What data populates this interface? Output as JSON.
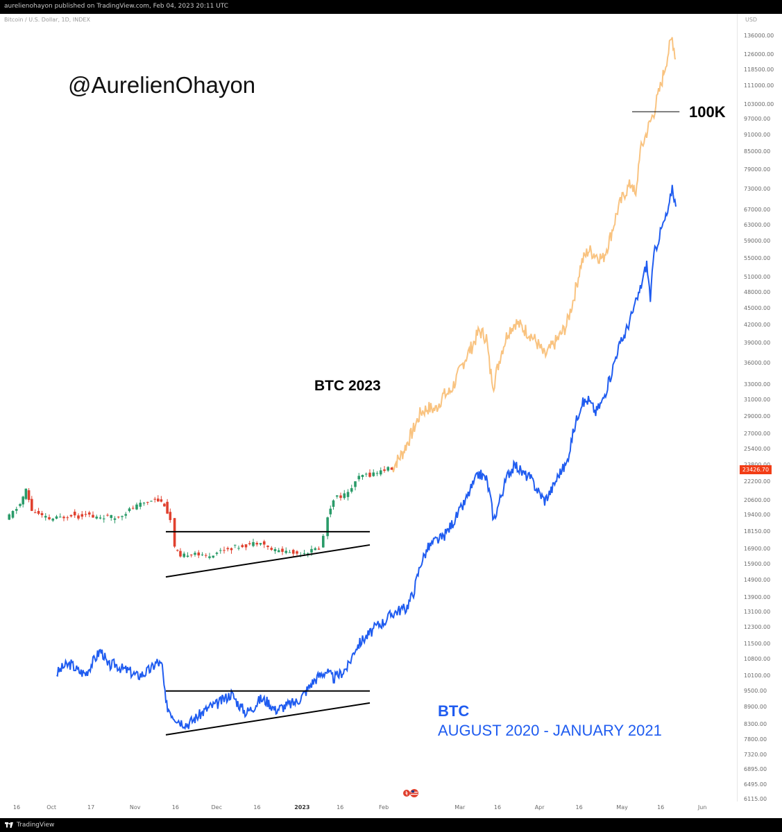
{
  "header": {
    "published": "aurelienohayon published on TradingView.com, Feb 04, 2023 20:11 UTC"
  },
  "chart_header": {
    "symbol": "Bitcoin / U.S. Dollar, 1D, INDEX",
    "currency": "USD"
  },
  "annotations": {
    "handle": "@AurelienOhayon",
    "level_100k": "100K",
    "btc_2023": "BTC 2023",
    "btc_title": "BTC",
    "btc_period": "AUGUST 2020 - JANUARY 2021"
  },
  "price_tag": "23426.70",
  "footer": {
    "brand": "TradingView"
  },
  "colors": {
    "up": "#2a9b69",
    "down": "#e0402e",
    "projection": "#f8b86a",
    "btc2020": "#1f5cf0",
    "price_tag": "#f23d16"
  },
  "icons": {
    "tv_logo": "tradingview-logo-icon",
    "flag": "us-flag-event-icon"
  },
  "chart_data": {
    "type": "line",
    "scale": "log",
    "title": "",
    "y_ticks": [
      136000,
      126000,
      118500,
      111000,
      103000,
      97000,
      91000,
      85000,
      79000,
      73000,
      67000,
      63000,
      59000,
      55000,
      51000,
      48000,
      45000,
      42000,
      39000,
      36000,
      33000,
      31000,
      29000,
      27000,
      25400,
      23800,
      22200,
      20600,
      19400,
      18150,
      16900,
      15900,
      14900,
      13900,
      13100,
      12300,
      11500,
      10800,
      10100,
      9500,
      8900,
      8300,
      7800,
      7320,
      6895,
      6495,
      6115
    ],
    "y_tick_labels": [
      "136000.00",
      "126000.00",
      "118500.00",
      "111000.00",
      "103000.00",
      "97000.00",
      "91000.00",
      "85000.00",
      "79000.00",
      "73000.00",
      "67000.00",
      "63000.00",
      "59000.00",
      "55000.00",
      "51000.00",
      "48000.00",
      "45000.00",
      "42000.00",
      "39000.00",
      "36000.00",
      "33000.00",
      "31000.00",
      "29000.00",
      "27000.00",
      "25400.00",
      "23800.00",
      "22200.00",
      "20600.00",
      "19400.00",
      "18150.00",
      "16900.00",
      "15900.00",
      "14900.00",
      "13900.00",
      "13100.00",
      "12300.00",
      "11500.00",
      "10800.00",
      "10100.00",
      "9500.00",
      "8900.00",
      "8300.00",
      "7800.00",
      "7320.00",
      "6895.00",
      "6495.00",
      "6115.00"
    ],
    "x_tick_labels": [
      {
        "label": "16",
        "x": 0.018,
        "bold": false
      },
      {
        "label": "Oct",
        "x": 0.064,
        "bold": false
      },
      {
        "label": "17",
        "x": 0.12,
        "bold": false
      },
      {
        "label": "Nov",
        "x": 0.178,
        "bold": false
      },
      {
        "label": "16",
        "x": 0.236,
        "bold": false
      },
      {
        "label": "Dec",
        "x": 0.29,
        "bold": false
      },
      {
        "label": "16",
        "x": 0.348,
        "bold": false
      },
      {
        "label": "2023",
        "x": 0.404,
        "bold": true
      },
      {
        "label": "16",
        "x": 0.462,
        "bold": false
      },
      {
        "label": "Feb",
        "x": 0.52,
        "bold": false
      },
      {
        "label": "Mar",
        "x": 0.624,
        "bold": false
      },
      {
        "label": "16",
        "x": 0.678,
        "bold": false
      },
      {
        "label": "Apr",
        "x": 0.734,
        "bold": false
      },
      {
        "label": "16",
        "x": 0.79,
        "bold": false
      },
      {
        "label": "May",
        "x": 0.846,
        "bold": false
      },
      {
        "label": "16",
        "x": 0.902,
        "bold": false
      },
      {
        "label": "Jun",
        "x": 0.958,
        "bold": false
      }
    ],
    "series": [
      {
        "name": "BTC 2023",
        "style": "candles",
        "points": [
          [
            0.0,
            19000
          ],
          [
            0.02,
            20300
          ],
          [
            0.028,
            21500
          ],
          [
            0.036,
            19800
          ],
          [
            0.05,
            19300
          ],
          [
            0.06,
            19100
          ],
          [
            0.075,
            19200
          ],
          [
            0.09,
            19500
          ],
          [
            0.1,
            19300
          ],
          [
            0.11,
            19600
          ],
          [
            0.12,
            19200
          ],
          [
            0.135,
            19300
          ],
          [
            0.15,
            19200
          ],
          [
            0.16,
            19500
          ],
          [
            0.175,
            20000
          ],
          [
            0.19,
            20400
          ],
          [
            0.205,
            20800
          ],
          [
            0.218,
            20300
          ],
          [
            0.226,
            19000
          ],
          [
            0.232,
            17000
          ],
          [
            0.24,
            16300
          ],
          [
            0.25,
            16600
          ],
          [
            0.26,
            16700
          ],
          [
            0.27,
            16400
          ],
          [
            0.28,
            16500
          ],
          [
            0.29,
            16700
          ],
          [
            0.3,
            16900
          ],
          [
            0.31,
            17000
          ],
          [
            0.32,
            17100
          ],
          [
            0.33,
            17200
          ],
          [
            0.34,
            17300
          ],
          [
            0.35,
            17500
          ],
          [
            0.36,
            17000
          ],
          [
            0.37,
            16800
          ],
          [
            0.38,
            16800
          ],
          [
            0.39,
            16700
          ],
          [
            0.4,
            16600
          ],
          [
            0.41,
            16700
          ],
          [
            0.42,
            16800
          ],
          [
            0.43,
            17000
          ],
          [
            0.436,
            17800
          ],
          [
            0.442,
            19300
          ],
          [
            0.45,
            20800
          ],
          [
            0.46,
            21000
          ],
          [
            0.47,
            21200
          ],
          [
            0.48,
            22300
          ],
          [
            0.49,
            22800
          ],
          [
            0.5,
            22900
          ],
          [
            0.51,
            23100
          ],
          [
            0.52,
            23400
          ],
          [
            0.53,
            23426.7
          ]
        ]
      },
      {
        "name": "",
        "style": "projection",
        "points": [
          [
            0.53,
            23426.7
          ],
          [
            0.545,
            25000
          ],
          [
            0.56,
            27500
          ],
          [
            0.57,
            29500
          ],
          [
            0.58,
            30000
          ],
          [
            0.59,
            29800
          ],
          [
            0.6,
            31500
          ],
          [
            0.61,
            32000
          ],
          [
            0.62,
            34000
          ],
          [
            0.63,
            36500
          ],
          [
            0.64,
            38500
          ],
          [
            0.65,
            41000
          ],
          [
            0.66,
            40000
          ],
          [
            0.665,
            35000
          ],
          [
            0.67,
            33000
          ],
          [
            0.68,
            37500
          ],
          [
            0.69,
            41000
          ],
          [
            0.7,
            42500
          ],
          [
            0.71,
            41500
          ],
          [
            0.72,
            40500
          ],
          [
            0.73,
            39000
          ],
          [
            0.74,
            37000
          ],
          [
            0.75,
            38500
          ],
          [
            0.76,
            40000
          ],
          [
            0.77,
            42000
          ],
          [
            0.78,
            47000
          ],
          [
            0.79,
            54000
          ],
          [
            0.8,
            57000
          ],
          [
            0.81,
            56000
          ],
          [
            0.82,
            55000
          ],
          [
            0.83,
            60000
          ],
          [
            0.84,
            67000
          ],
          [
            0.85,
            72000
          ],
          [
            0.86,
            75000
          ],
          [
            0.865,
            70000
          ],
          [
            0.87,
            84000
          ],
          [
            0.88,
            92000
          ],
          [
            0.89,
            100000
          ],
          [
            0.9,
            112000
          ],
          [
            0.91,
            128000
          ],
          [
            0.915,
            135000
          ],
          [
            0.92,
            124000
          ]
        ]
      },
      {
        "name": "BTC AUGUST 2020 - JANUARY 2021",
        "style": "line",
        "points": [
          [
            0.07,
            10200
          ],
          [
            0.08,
            10500
          ],
          [
            0.09,
            10600
          ],
          [
            0.1,
            10300
          ],
          [
            0.11,
            10200
          ],
          [
            0.12,
            10700
          ],
          [
            0.13,
            11200
          ],
          [
            0.135,
            11000
          ],
          [
            0.14,
            10500
          ],
          [
            0.15,
            10600
          ],
          [
            0.16,
            10400
          ],
          [
            0.17,
            10300
          ],
          [
            0.18,
            10100
          ],
          [
            0.19,
            10200
          ],
          [
            0.2,
            10400
          ],
          [
            0.208,
            10700
          ],
          [
            0.215,
            10500
          ],
          [
            0.22,
            9000
          ],
          [
            0.23,
            8600
          ],
          [
            0.24,
            8400
          ],
          [
            0.25,
            8300
          ],
          [
            0.26,
            8500
          ],
          [
            0.27,
            8700
          ],
          [
            0.28,
            8900
          ],
          [
            0.29,
            9000
          ],
          [
            0.3,
            9200
          ],
          [
            0.31,
            9400
          ],
          [
            0.32,
            9000
          ],
          [
            0.33,
            8700
          ],
          [
            0.34,
            8900
          ],
          [
            0.35,
            9200
          ],
          [
            0.36,
            9100
          ],
          [
            0.37,
            8800
          ],
          [
            0.38,
            8900
          ],
          [
            0.39,
            9000
          ],
          [
            0.4,
            9100
          ],
          [
            0.41,
            9400
          ],
          [
            0.42,
            9800
          ],
          [
            0.43,
            10100
          ],
          [
            0.44,
            10300
          ],
          [
            0.45,
            10000
          ],
          [
            0.46,
            10200
          ],
          [
            0.47,
            10500
          ],
          [
            0.48,
            11300
          ],
          [
            0.49,
            11700
          ],
          [
            0.5,
            12000
          ],
          [
            0.51,
            12400
          ],
          [
            0.52,
            12600
          ],
          [
            0.53,
            13000
          ],
          [
            0.54,
            13200
          ],
          [
            0.55,
            13300
          ],
          [
            0.56,
            14200
          ],
          [
            0.57,
            16000
          ],
          [
            0.58,
            17000
          ],
          [
            0.59,
            17500
          ],
          [
            0.6,
            17700
          ],
          [
            0.61,
            18500
          ],
          [
            0.62,
            19400
          ],
          [
            0.63,
            20400
          ],
          [
            0.64,
            21800
          ],
          [
            0.65,
            23000
          ],
          [
            0.66,
            22500
          ],
          [
            0.665,
            21000
          ],
          [
            0.67,
            19000
          ],
          [
            0.68,
            21000
          ],
          [
            0.69,
            23000
          ],
          [
            0.7,
            23800
          ],
          [
            0.71,
            23000
          ],
          [
            0.72,
            22600
          ],
          [
            0.73,
            21500
          ],
          [
            0.74,
            20600
          ],
          [
            0.75,
            21600
          ],
          [
            0.76,
            23000
          ],
          [
            0.77,
            23900
          ],
          [
            0.78,
            27500
          ],
          [
            0.79,
            30500
          ],
          [
            0.8,
            31000
          ],
          [
            0.81,
            29500
          ],
          [
            0.82,
            31000
          ],
          [
            0.83,
            34000
          ],
          [
            0.84,
            38000
          ],
          [
            0.85,
            40500
          ],
          [
            0.86,
            44000
          ],
          [
            0.87,
            48000
          ],
          [
            0.88,
            54000
          ],
          [
            0.885,
            47000
          ],
          [
            0.89,
            56000
          ],
          [
            0.9,
            62000
          ],
          [
            0.91,
            67000
          ],
          [
            0.915,
            74000
          ],
          [
            0.92,
            68000
          ]
        ]
      }
    ],
    "horizontal_levels": [
      {
        "value": 18150,
        "x_range": [
          0.22,
          0.5
        ]
      },
      {
        "value": 9500,
        "x_range": [
          0.22,
          0.5
        ]
      },
      {
        "value": 100000,
        "x_range": [
          0.86,
          0.925
        ]
      }
    ],
    "trendlines": [
      {
        "from": [
          0.22,
          15100
        ],
        "to": [
          0.5,
          17200
        ]
      },
      {
        "from": [
          0.22,
          7950
        ],
        "to": [
          0.5,
          9050
        ]
      }
    ],
    "last_price": 23426.7
  }
}
